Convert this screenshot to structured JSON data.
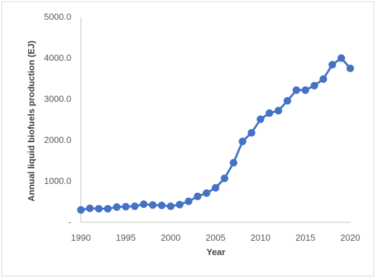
{
  "chart_data": {
    "type": "line",
    "title": "",
    "xlabel": "Year",
    "ylabel": "Annual liquid biofuels production (EJ)",
    "xlim": [
      1990,
      2020
    ],
    "ylim": [
      0,
      5000
    ],
    "x_ticks": [
      "1990",
      "1995",
      "2000",
      "2005",
      "2010",
      "2015",
      "2020"
    ],
    "y_ticks": [
      "-",
      "1000.0",
      "2000.0",
      "3000.0",
      "4000.0",
      "5000.0"
    ],
    "grid": false,
    "legend": "none",
    "color": "#4472C4",
    "series": [
      {
        "x": [
          1990,
          1991,
          1992,
          1993,
          1994,
          1995,
          1996,
          1997,
          1998,
          1999,
          2000,
          2001,
          2002,
          2003,
          2004,
          2005,
          2006,
          2007,
          2008,
          2009,
          2010,
          2011,
          2012,
          2013,
          2014,
          2015,
          2016,
          2017,
          2018,
          2019,
          2020
        ],
        "values": [
          300,
          340,
          330,
          330,
          370,
          380,
          390,
          440,
          420,
          410,
          390,
          430,
          510,
          630,
          710,
          840,
          1070,
          1450,
          1970,
          2180,
          2510,
          2660,
          2720,
          2960,
          3220,
          3220,
          3330,
          3490,
          3840,
          4000,
          3750
        ]
      }
    ]
  }
}
